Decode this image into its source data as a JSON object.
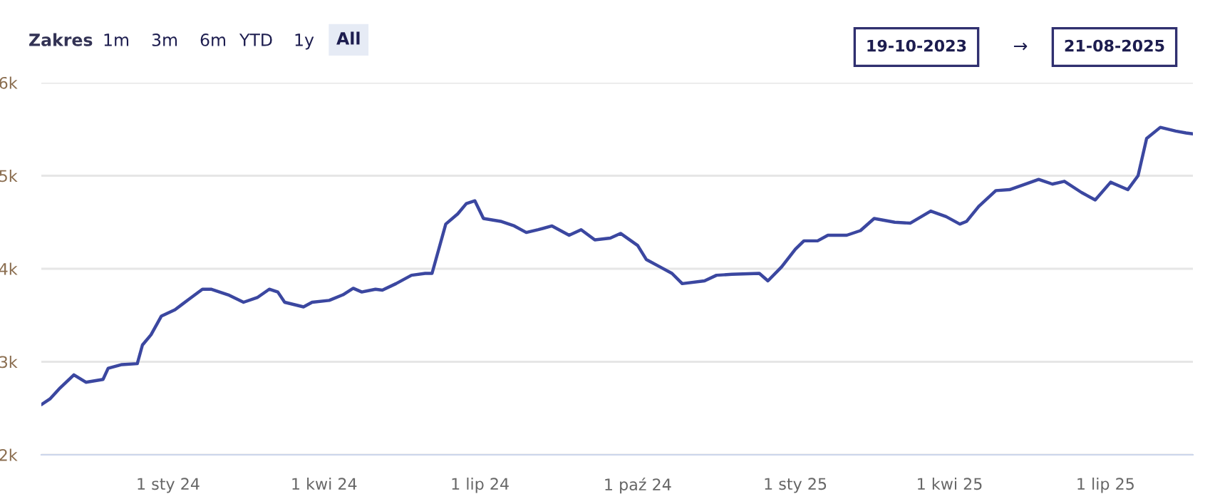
{
  "chart_data": {
    "type": "line",
    "x": [
      "2023-10-19",
      "2023-10-24",
      "2023-10-30",
      "2023-11-07",
      "2023-11-14",
      "2023-11-24",
      "2023-11-27",
      "2023-12-05",
      "2023-12-14",
      "2023-12-17",
      "2023-12-22",
      "2023-12-28",
      "2024-01-05",
      "2024-01-13",
      "2024-01-21",
      "2024-01-26",
      "2024-02-05",
      "2024-02-14",
      "2024-02-22",
      "2024-02-29",
      "2024-03-05",
      "2024-03-09",
      "2024-03-20",
      "2024-03-25",
      "2024-04-04",
      "2024-04-12",
      "2024-04-18",
      "2024-04-23",
      "2024-05-01",
      "2024-05-05",
      "2024-05-13",
      "2024-05-17",
      "2024-05-22",
      "2024-05-30",
      "2024-06-03",
      "2024-06-11",
      "2024-06-18",
      "2024-06-23",
      "2024-06-28",
      "2024-07-03",
      "2024-07-13",
      "2024-07-21",
      "2024-07-28",
      "2024-08-04",
      "2024-08-12",
      "2024-08-22",
      "2024-08-29",
      "2024-09-06",
      "2024-09-15",
      "2024-09-21",
      "2024-10-01",
      "2024-10-06",
      "2024-10-14",
      "2024-10-21",
      "2024-10-27",
      "2024-11-09",
      "2024-11-16",
      "2024-11-25",
      "2024-12-11",
      "2024-12-16",
      "2024-12-24",
      "2025-01-01",
      "2025-01-06",
      "2025-01-14",
      "2025-01-20",
      "2025-01-31",
      "2025-02-08",
      "2025-02-16",
      "2025-02-28",
      "2025-03-09",
      "2025-03-21",
      "2025-03-30",
      "2025-04-07",
      "2025-04-11",
      "2025-04-18",
      "2025-04-28",
      "2025-05-06",
      "2025-05-23",
      "2025-05-31",
      "2025-06-07",
      "2025-06-17",
      "2025-06-25",
      "2025-07-04",
      "2025-07-14",
      "2025-07-20",
      "2025-07-25",
      "2025-08-02",
      "2025-08-11",
      "2025-08-17",
      "2025-08-21"
    ],
    "series": [
      {
        "color": "#3b47a0",
        "values": [
          2540,
          2600,
          2720,
          2860,
          2780,
          2810,
          2930,
          2970,
          2980,
          3180,
          3290,
          3490,
          3560,
          3670,
          3780,
          3780,
          3720,
          3640,
          3690,
          3780,
          3750,
          3640,
          3590,
          3640,
          3660,
          3720,
          3790,
          3750,
          3780,
          3770,
          3840,
          3880,
          3930,
          3950,
          3950,
          4480,
          4590,
          4700,
          4730,
          4540,
          4510,
          4460,
          4390,
          4420,
          4460,
          4360,
          4420,
          4310,
          4330,
          4380,
          4250,
          4100,
          4020,
          3950,
          3840,
          3870,
          3930,
          3940,
          3950,
          3870,
          4020,
          4210,
          4300,
          4300,
          4360,
          4360,
          4410,
          4540,
          4500,
          4490,
          4620,
          4560,
          4480,
          4510,
          4670,
          4840,
          4850,
          4960,
          4910,
          4940,
          4820,
          4740,
          4930,
          4850,
          5000,
          5400,
          5520,
          5480,
          5460,
          5450
        ]
      }
    ],
    "xlim": [
      "2023-10-19",
      "2025-08-21"
    ],
    "xticks": [
      {
        "value": "2024-01-01",
        "label": "1 sty 24"
      },
      {
        "value": "2024-04-01",
        "label": "1 kwi 24"
      },
      {
        "value": "2024-07-01",
        "label": "1 lip 24"
      },
      {
        "value": "2024-10-01",
        "label": "1 paź 24"
      },
      {
        "value": "2025-01-01",
        "label": "1 sty 25"
      },
      {
        "value": "2025-04-01",
        "label": "1 kwi 25"
      },
      {
        "value": "2025-07-01",
        "label": "1 lip 25"
      }
    ],
    "ylim": [
      2000,
      6000
    ],
    "yticks": [
      {
        "value": 2000,
        "label": "2k"
      },
      {
        "value": 3000,
        "label": "3k"
      },
      {
        "value": 4000,
        "label": "4k"
      },
      {
        "value": 5000,
        "label": "5k"
      },
      {
        "value": 6000,
        "label": "6k"
      }
    ],
    "grid": "y",
    "legend": false,
    "marker": "none",
    "line_style": "solid",
    "annotations": [
      "Zakres",
      "1m",
      "3m",
      "6m",
      "YTD",
      "1y",
      "All",
      "19-10-2023",
      "→",
      "21-08-2025"
    ]
  }
}
